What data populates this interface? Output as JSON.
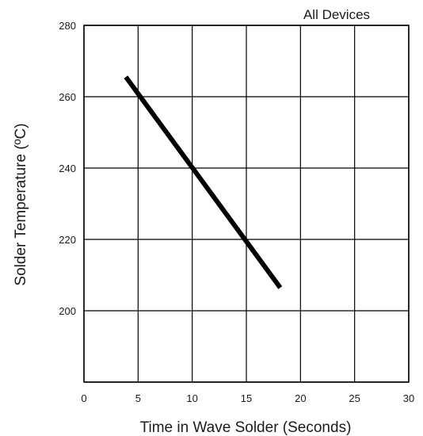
{
  "chart_data": {
    "type": "line",
    "title": "",
    "annotation": "All Devices",
    "xlabel": "Time in Wave Solder (Seconds)",
    "ylabel": "Solder Temperature (ºC)",
    "xlim": [
      0,
      30
    ],
    "ylim": [
      180,
      280
    ],
    "xticks": [
      0,
      5,
      10,
      15,
      20,
      25,
      30
    ],
    "xtick_labels": [
      "0",
      "5",
      "10",
      "15",
      "20",
      "25",
      "30"
    ],
    "yticks": [
      280,
      260,
      240,
      220,
      200
    ],
    "ytick_labels": [
      "280",
      "260",
      "240",
      "220",
      "200"
    ],
    "grid": true,
    "series": [
      {
        "color": "#000000",
        "x": [
          4,
          18
        ],
        "y": [
          265,
          207
        ]
      }
    ]
  }
}
